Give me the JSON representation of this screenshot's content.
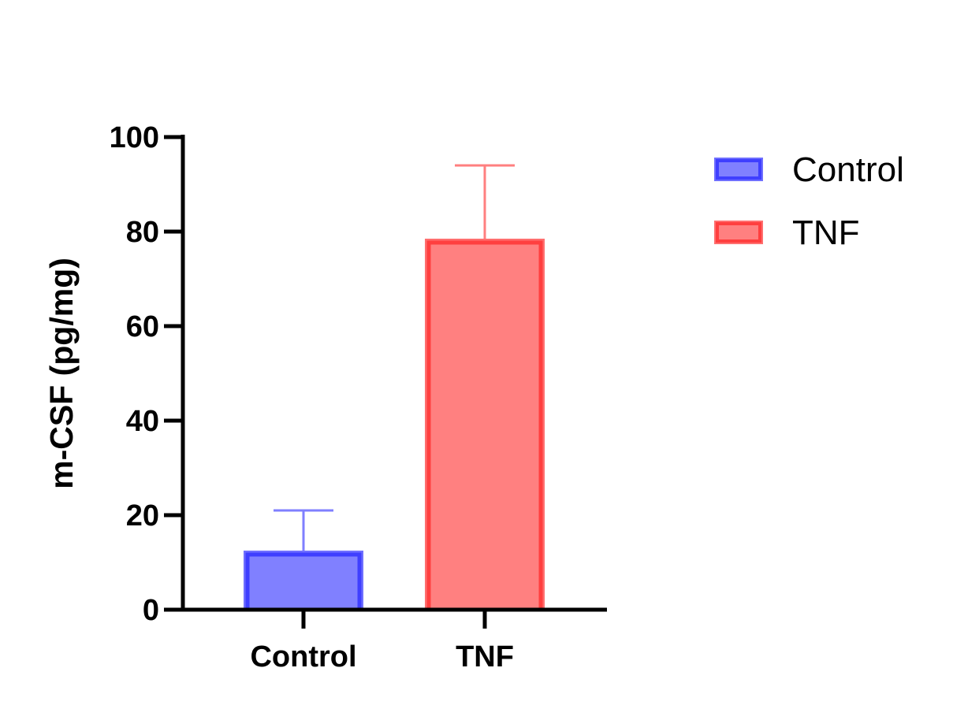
{
  "chart_data": {
    "type": "bar",
    "categories": [
      "Control",
      "TNF"
    ],
    "values": [
      12,
      78
    ],
    "error_upper": [
      21,
      94
    ],
    "ylabel": "m-CSF (pg/mg)",
    "xlabel": "",
    "ylim": [
      0,
      100
    ],
    "yticks": [
      0,
      20,
      40,
      60,
      80,
      100
    ],
    "ytick_labels": [
      "0",
      "20",
      "40",
      "60",
      "80",
      "100"
    ],
    "grid": false,
    "legend": {
      "position": "top-right",
      "entries": [
        "Control",
        "TNF"
      ]
    },
    "colors": {
      "fills": [
        "#8080ff",
        "#ff8080"
      ],
      "edges": [
        "#3f3fff",
        "#ff3f3f"
      ],
      "outer_edges": [
        "#6f6fff",
        "#ff6f6f"
      ],
      "errorbars": [
        "#7f7fff",
        "#ff7f7f"
      ]
    }
  }
}
